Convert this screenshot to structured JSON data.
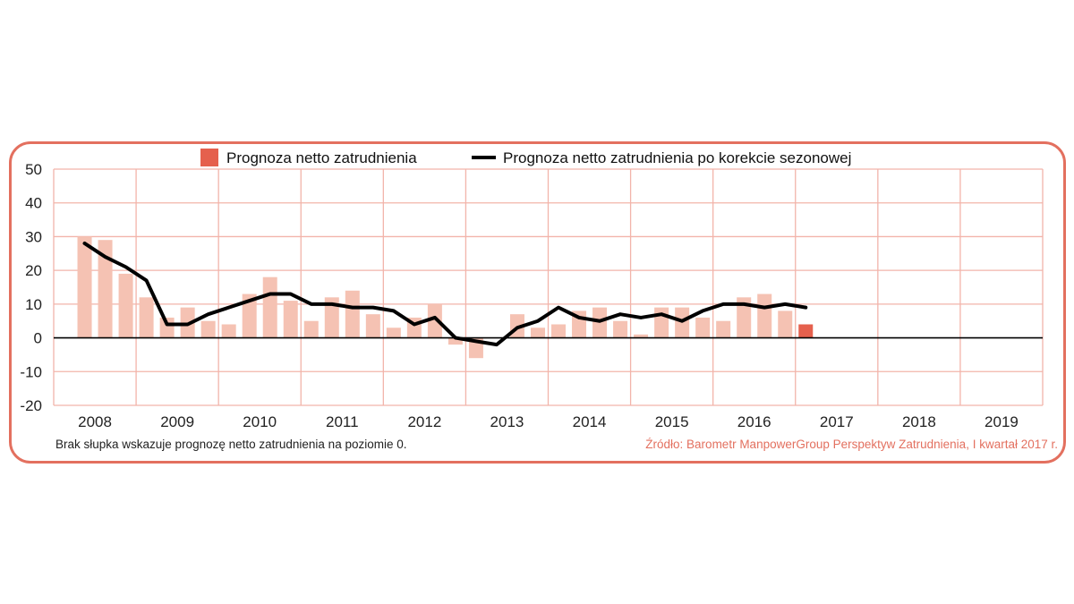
{
  "chart_data": {
    "type": "bar",
    "title": "",
    "xlabel": "",
    "ylabel": "",
    "ylim": [
      -20,
      50
    ],
    "yticks": [
      50,
      40,
      30,
      20,
      10,
      0,
      -10,
      -20
    ],
    "grid": true,
    "legend_position": "top-center",
    "years": [
      "2008",
      "2009",
      "2010",
      "2011",
      "2012",
      "2013",
      "2014",
      "2015",
      "2016",
      "2017",
      "2018",
      "2019"
    ],
    "start_quarter": "2008 Q2",
    "series": [
      {
        "name": "Prognoza netto zatrudnienia",
        "type": "bar",
        "color": "#f5c2b3",
        "highlight_color": "#e5604d",
        "highlight_last": true,
        "values": [
          30,
          29,
          19,
          12,
          6,
          9,
          5,
          4,
          13,
          18,
          11,
          5,
          12,
          14,
          7,
          3,
          6,
          10,
          -2,
          -6,
          0,
          7,
          3,
          4,
          8,
          9,
          5,
          1,
          9,
          9,
          6,
          5,
          12,
          13,
          8,
          4
        ]
      },
      {
        "name": "Prognoza netto zatrudnienia po korekcie sezonowej",
        "type": "line",
        "color": "#000000",
        "values": [
          28,
          24,
          21,
          17,
          4,
          4,
          7,
          9,
          11,
          13,
          13,
          10,
          10,
          9,
          9,
          8,
          4,
          6,
          0,
          -1,
          -2,
          3,
          5,
          9,
          6,
          5,
          7,
          6,
          7,
          5,
          8,
          10,
          10,
          9,
          10,
          9
        ]
      }
    ]
  },
  "footnote": "Brak słupka wskazuje prognozę netto zatrudnienia na poziomie 0.",
  "source": "Źródło: Barometr ManpowerGroup Perspektyw Zatrudnienia, I kwartał 2017 r."
}
